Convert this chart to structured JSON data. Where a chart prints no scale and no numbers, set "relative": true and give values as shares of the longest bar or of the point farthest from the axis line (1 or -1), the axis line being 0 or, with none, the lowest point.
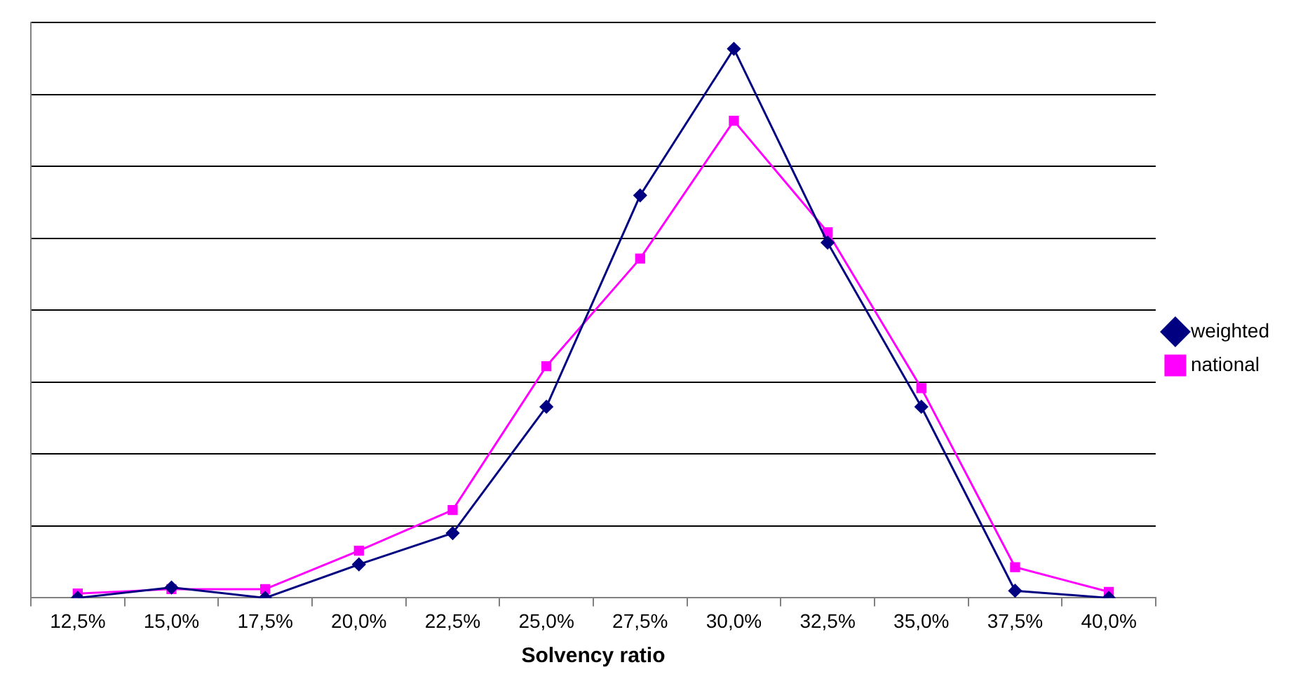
{
  "chart_data": {
    "type": "line",
    "xlabel": "Solvency ratio",
    "relative": true,
    "grid": "y",
    "legend": "right",
    "line_style": "solid",
    "categories": [
      "12,5%",
      "15,0%",
      "17,5%",
      "20,0%",
      "22,5%",
      "25,0%",
      "27,5%",
      "30,0%",
      "32,5%",
      "35,0%",
      "37,5%",
      "40,0%"
    ],
    "series": [
      {
        "name": "weighted",
        "color": "#000080",
        "marker": "diamond",
        "values": [
          0,
          0.019,
          0,
          0.061,
          0.118,
          0.348,
          0.733,
          1,
          0.647,
          0.348,
          0.013,
          0
        ]
      },
      {
        "name": "national",
        "color": "#ff00ff",
        "marker": "square",
        "values": [
          0.008,
          0.016,
          0.016,
          0.086,
          0.16,
          0.422,
          0.618,
          0.869,
          0.666,
          0.382,
          0.056,
          0.011
        ]
      }
    ]
  }
}
